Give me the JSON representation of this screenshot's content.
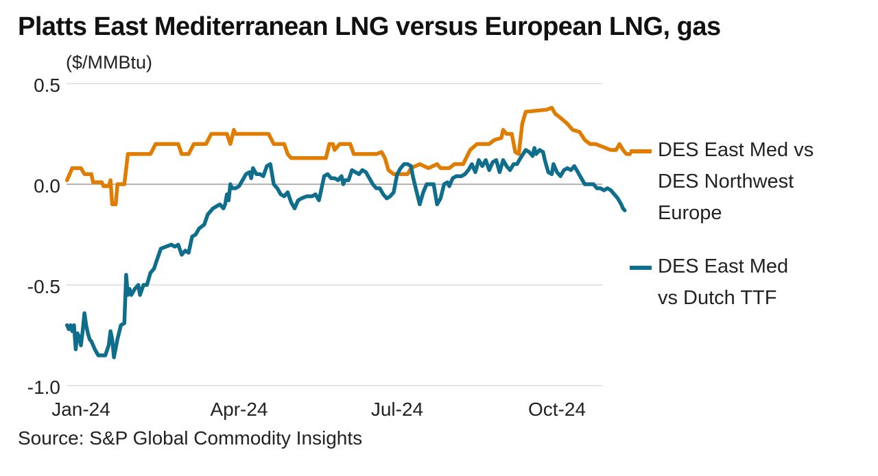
{
  "chart_data": {
    "type": "line",
    "title": "Platts East Mediterranean LNG versus European LNG, gas",
    "ylabel": "($/MMBtu)",
    "xlabel": "",
    "source": "Source: S&P Global Commodity Insights",
    "ylim": [
      -1.0,
      0.5
    ],
    "yticks": [
      0.5,
      0.0,
      -0.5,
      -1.0
    ],
    "ytick_labels": [
      "0.5",
      "0.0",
      "-0.5",
      "-1.0"
    ],
    "xlim_days": [
      -9,
      300
    ],
    "xticks": [
      {
        "label": "Jan-24",
        "day": 0
      },
      {
        "label": "Apr-24",
        "day": 91
      },
      {
        "label": "Jul-24",
        "day": 182
      },
      {
        "label": "Oct-24",
        "day": 274
      }
    ],
    "x_unit": "days since 2024-01-01",
    "grid": true,
    "legend_position": "right",
    "series": [
      {
        "name": "DES East Med vs DES Northwest Europe",
        "color": "#E07C00",
        "points": [
          [
            -8,
            0.02
          ],
          [
            -5,
            0.08
          ],
          [
            0,
            0.08
          ],
          [
            2,
            0.05
          ],
          [
            6,
            0.05
          ],
          [
            7,
            0.01
          ],
          [
            12,
            0.01
          ],
          [
            13,
            -0.01
          ],
          [
            16,
            -0.01
          ],
          [
            17,
            0.02
          ],
          [
            18,
            -0.1
          ],
          [
            20,
            -0.1
          ],
          [
            21,
            0.0
          ],
          [
            25,
            0.0
          ],
          [
            27,
            0.15
          ],
          [
            40,
            0.15
          ],
          [
            43,
            0.2
          ],
          [
            56,
            0.2
          ],
          [
            58,
            0.15
          ],
          [
            62,
            0.15
          ],
          [
            65,
            0.2
          ],
          [
            72,
            0.2
          ],
          [
            75,
            0.25
          ],
          [
            84,
            0.25
          ],
          [
            86,
            0.2
          ],
          [
            88,
            0.27
          ],
          [
            89,
            0.25
          ],
          [
            108,
            0.25
          ],
          [
            111,
            0.2
          ],
          [
            117,
            0.2
          ],
          [
            119,
            0.15
          ],
          [
            121,
            0.13
          ],
          [
            141,
            0.13
          ],
          [
            143,
            0.2
          ],
          [
            145,
            0.2
          ],
          [
            146,
            0.17
          ],
          [
            149,
            0.2
          ],
          [
            155,
            0.2
          ],
          [
            157,
            0.15
          ],
          [
            170,
            0.15
          ],
          [
            173,
            0.16
          ],
          [
            175,
            0.13
          ],
          [
            177,
            0.07
          ],
          [
            180,
            0.05
          ],
          [
            188,
            0.05
          ],
          [
            190,
            0.08
          ],
          [
            195,
            0.1
          ],
          [
            200,
            0.08
          ],
          [
            205,
            0.1
          ],
          [
            207,
            0.08
          ],
          [
            212,
            0.08
          ],
          [
            215,
            0.1
          ],
          [
            220,
            0.1
          ],
          [
            224,
            0.17
          ],
          [
            228,
            0.2
          ],
          [
            235,
            0.2
          ],
          [
            238,
            0.22
          ],
          [
            242,
            0.23
          ],
          [
            243,
            0.27
          ],
          [
            245,
            0.25
          ],
          [
            248,
            0.25
          ],
          [
            250,
            0.16
          ],
          [
            252,
            0.15
          ],
          [
            254,
            0.3
          ],
          [
            256,
            0.36
          ],
          [
            268,
            0.37
          ],
          [
            271,
            0.38
          ],
          [
            273,
            0.35
          ],
          [
            276,
            0.33
          ],
          [
            280,
            0.3
          ],
          [
            283,
            0.27
          ],
          [
            287,
            0.26
          ],
          [
            290,
            0.22
          ],
          [
            293,
            0.2
          ],
          [
            296,
            0.2
          ],
          [
            299,
            0.19
          ],
          [
            302,
            0.18
          ],
          [
            305,
            0.17
          ],
          [
            308,
            0.17
          ],
          [
            310,
            0.2
          ],
          [
            312,
            0.17
          ],
          [
            314,
            0.15
          ],
          [
            316,
            0.15
          ]
        ]
      },
      {
        "name": "DES East Med vs Dutch TTF",
        "color": "#0E6E8C",
        "points": [
          [
            -8,
            -0.7
          ],
          [
            -7,
            -0.72
          ],
          [
            -6,
            -0.7
          ],
          [
            -5,
            -0.73
          ],
          [
            -4,
            -0.7
          ],
          [
            -3,
            -0.82
          ],
          [
            -2,
            -0.74
          ],
          [
            -1,
            -0.76
          ],
          [
            0,
            -0.8
          ],
          [
            1,
            -0.73
          ],
          [
            2,
            -0.64
          ],
          [
            3,
            -0.7
          ],
          [
            4,
            -0.74
          ],
          [
            5,
            -0.77
          ],
          [
            6,
            -0.78
          ],
          [
            8,
            -0.82
          ],
          [
            10,
            -0.85
          ],
          [
            14,
            -0.85
          ],
          [
            16,
            -0.8
          ],
          [
            17,
            -0.73
          ],
          [
            18,
            -0.77
          ],
          [
            19,
            -0.86
          ],
          [
            21,
            -0.77
          ],
          [
            23,
            -0.7
          ],
          [
            25,
            -0.69
          ],
          [
            26,
            -0.45
          ],
          [
            27,
            -0.55
          ],
          [
            28,
            -0.52
          ],
          [
            29,
            -0.55
          ],
          [
            31,
            -0.52
          ],
          [
            33,
            -0.5
          ],
          [
            34,
            -0.55
          ],
          [
            36,
            -0.5
          ],
          [
            38,
            -0.5
          ],
          [
            40,
            -0.44
          ],
          [
            42,
            -0.42
          ],
          [
            44,
            -0.37
          ],
          [
            46,
            -0.32
          ],
          [
            49,
            -0.31
          ],
          [
            52,
            -0.3
          ],
          [
            54,
            -0.31
          ],
          [
            56,
            -0.3
          ],
          [
            58,
            -0.35
          ],
          [
            60,
            -0.33
          ],
          [
            62,
            -0.34
          ],
          [
            64,
            -0.26
          ],
          [
            66,
            -0.25
          ],
          [
            68,
            -0.22
          ],
          [
            71,
            -0.2
          ],
          [
            73,
            -0.15
          ],
          [
            76,
            -0.12
          ],
          [
            78,
            -0.11
          ],
          [
            80,
            -0.1
          ],
          [
            82,
            -0.12
          ],
          [
            83,
            -0.1
          ],
          [
            84,
            -0.05
          ],
          [
            85,
            -0.08
          ],
          [
            86,
            0.0
          ],
          [
            87,
            -0.02
          ],
          [
            89,
            -0.02
          ],
          [
            91,
            -0.01
          ],
          [
            93,
            0.02
          ],
          [
            95,
            0.05
          ],
          [
            97,
            0.06
          ],
          [
            98,
            0.03
          ],
          [
            99,
            0.08
          ],
          [
            101,
            0.05
          ],
          [
            103,
            0.05
          ],
          [
            105,
            0.04
          ],
          [
            107,
            0.09
          ],
          [
            109,
            0.1
          ],
          [
            111,
            0.0
          ],
          [
            113,
            -0.02
          ],
          [
            115,
            -0.05
          ],
          [
            117,
            -0.06
          ],
          [
            119,
            -0.04
          ],
          [
            121,
            -0.09
          ],
          [
            123,
            -0.12
          ],
          [
            125,
            -0.08
          ],
          [
            127,
            -0.07
          ],
          [
            130,
            -0.06
          ],
          [
            133,
            -0.06
          ],
          [
            135,
            -0.05
          ],
          [
            137,
            -0.08
          ],
          [
            140,
            0.04
          ],
          [
            142,
            0.05
          ],
          [
            144,
            0.03
          ],
          [
            146,
            0.03
          ],
          [
            148,
            0.02
          ],
          [
            150,
            0.04
          ],
          [
            151,
            0.0
          ],
          [
            152,
            0.02
          ],
          [
            154,
            0.02
          ],
          [
            156,
            0.07
          ],
          [
            158,
            0.06
          ],
          [
            160,
            0.05
          ],
          [
            162,
            0.07
          ],
          [
            164,
            0.06
          ],
          [
            166,
            0.03
          ],
          [
            168,
            0.0
          ],
          [
            170,
            -0.02
          ],
          [
            172,
            -0.02
          ],
          [
            174,
            -0.05
          ],
          [
            176,
            -0.07
          ],
          [
            178,
            -0.06
          ],
          [
            180,
            -0.04
          ],
          [
            182,
            0.05
          ],
          [
            184,
            0.08
          ],
          [
            186,
            0.1
          ],
          [
            188,
            0.1
          ],
          [
            190,
            0.09
          ],
          [
            191,
            0.04
          ],
          [
            193,
            -0.03
          ],
          [
            195,
            -0.1
          ],
          [
            197,
            -0.04
          ],
          [
            199,
            0.0
          ],
          [
            201,
            0.0
          ],
          [
            203,
            0.0
          ],
          [
            205,
            -0.1
          ],
          [
            207,
            -0.07
          ],
          [
            209,
            0.0
          ],
          [
            211,
            0.01
          ],
          [
            212,
            -0.01
          ],
          [
            214,
            0.03
          ],
          [
            216,
            0.04
          ],
          [
            219,
            0.04
          ],
          [
            221,
            0.05
          ],
          [
            223,
            0.07
          ],
          [
            225,
            0.1
          ],
          [
            227,
            0.06
          ],
          [
            229,
            0.12
          ],
          [
            231,
            0.09
          ],
          [
            233,
            0.12
          ],
          [
            235,
            0.07
          ],
          [
            237,
            0.11
          ],
          [
            239,
            0.12
          ],
          [
            241,
            0.06
          ],
          [
            243,
            0.12
          ],
          [
            245,
            0.09
          ],
          [
            247,
            0.07
          ],
          [
            249,
            0.1
          ],
          [
            251,
            0.1
          ],
          [
            253,
            0.13
          ],
          [
            256,
            0.17
          ],
          [
            258,
            0.16
          ],
          [
            260,
            0.14
          ],
          [
            261,
            0.18
          ],
          [
            262,
            0.15
          ],
          [
            264,
            0.17
          ],
          [
            266,
            0.16
          ],
          [
            267,
            0.12
          ],
          [
            269,
            0.06
          ],
          [
            271,
            0.05
          ],
          [
            272,
            0.1
          ],
          [
            274,
            0.06
          ],
          [
            276,
            0.04
          ],
          [
            278,
            0.07
          ],
          [
            280,
            0.08
          ],
          [
            282,
            0.07
          ],
          [
            284,
            0.09
          ],
          [
            286,
            0.06
          ],
          [
            288,
            0.03
          ],
          [
            290,
            0.0
          ],
          [
            293,
            0.0
          ],
          [
            295,
            0.0
          ],
          [
            297,
            -0.02
          ],
          [
            299,
            -0.02
          ],
          [
            301,
            -0.03
          ],
          [
            303,
            -0.02
          ],
          [
            305,
            -0.03
          ],
          [
            307,
            -0.05
          ],
          [
            309,
            -0.07
          ],
          [
            311,
            -0.1
          ],
          [
            312,
            -0.12
          ],
          [
            313,
            -0.13
          ]
        ]
      }
    ]
  },
  "legend": {
    "items": [
      {
        "label": "DES East Med vs\nDES Northwest\nEurope",
        "color": "#E07C00"
      },
      {
        "label": "DES East Med\nvs Dutch TTF",
        "color": "#0E6E8C"
      }
    ]
  }
}
